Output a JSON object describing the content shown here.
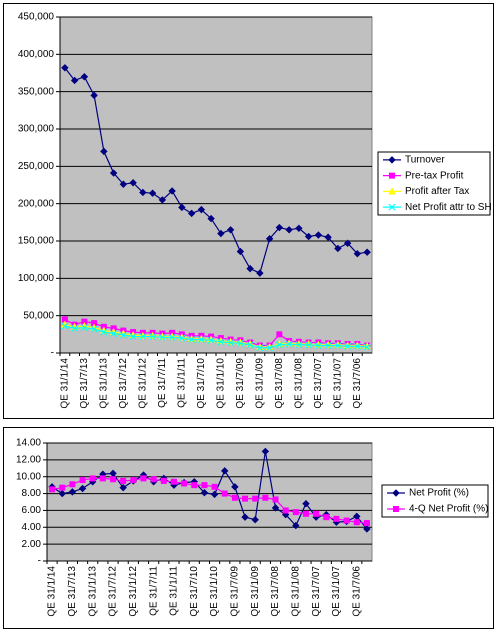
{
  "chart_data": [
    {
      "type": "line",
      "legend": "right",
      "grid": true,
      "categories": [
        "QE 31/1/14",
        null,
        "QE 31/7/13",
        null,
        "QE 31/1/13",
        null,
        "QE 31/7/12",
        null,
        "QE 31/1/12",
        null,
        "QE 31/7/11",
        null,
        "QE 31/1/11",
        null,
        "QE 31/7/10",
        null,
        "QE 31/1/10",
        null,
        "QE 31/7/09",
        null,
        "QE 31/1/09",
        null,
        "QE 31/7/08",
        null,
        "QE 31/1/08",
        null,
        "QE 31/7/07",
        null,
        "QE 31/1/07",
        null,
        "QE 31/7/06",
        null
      ],
      "ylim": [
        0,
        450000
      ],
      "yticks": [
        {
          "value": 0,
          "label": "-"
        },
        {
          "value": 50000,
          "label": "50,000"
        },
        {
          "value": 100000,
          "label": "100,000"
        },
        {
          "value": 150000,
          "label": "150,000"
        },
        {
          "value": 200000,
          "label": "200,000"
        },
        {
          "value": 250000,
          "label": "250,000"
        },
        {
          "value": 300000,
          "label": "300,000"
        },
        {
          "value": 350000,
          "label": "350,000"
        },
        {
          "value": 400000,
          "label": "400,000"
        },
        {
          "value": 450000,
          "label": "450,000"
        }
      ],
      "series": [
        {
          "name": "Turnover",
          "color": "#000080",
          "marker": "diamond",
          "values": [
            382000,
            365000,
            370000,
            345000,
            270000,
            241000,
            226000,
            228000,
            215000,
            214000,
            205000,
            217000,
            195000,
            187000,
            192000,
            180000,
            160000,
            165000,
            136000,
            113000,
            107000,
            153000,
            168000,
            165000,
            167000,
            156000,
            158000,
            155000,
            140000,
            147000,
            133000,
            135000
          ]
        },
        {
          "name": "Pre-tax Profit",
          "color": "#ff00ff",
          "marker": "square",
          "values": [
            45000,
            38000,
            42000,
            40000,
            35000,
            33000,
            30000,
            28000,
            27000,
            27000,
            26000,
            27000,
            25000,
            23000,
            23000,
            22000,
            20000,
            18000,
            17000,
            14000,
            10000,
            10000,
            25000,
            16000,
            15000,
            14000,
            14000,
            13000,
            13000,
            12000,
            12000,
            10000
          ]
        },
        {
          "name": "Profit after Tax",
          "color": "#ffff00",
          "marker": "triangle",
          "values": [
            38000,
            35000,
            36000,
            34000,
            30000,
            28000,
            26000,
            24000,
            23000,
            23000,
            22000,
            22000,
            21000,
            19000,
            19000,
            18000,
            16000,
            15000,
            14000,
            12000,
            8000,
            8000,
            12000,
            13000,
            12000,
            12000,
            11000,
            11000,
            11000,
            10000,
            10000,
            9000
          ]
        },
        {
          "name": "Net Profit attr to SH",
          "color": "#00ffff",
          "marker": "x",
          "values": [
            36000,
            33000,
            34000,
            32000,
            28000,
            26000,
            24000,
            22000,
            22000,
            22000,
            21000,
            21000,
            20000,
            18000,
            18000,
            17000,
            15000,
            14000,
            13000,
            11000,
            7000,
            7000,
            11000,
            12000,
            11000,
            11000,
            10000,
            10000,
            10000,
            9000,
            9000,
            8000
          ]
        }
      ]
    },
    {
      "type": "line",
      "legend": "right",
      "grid": true,
      "categories": [
        "QE 31/1/14",
        null,
        "QE 31/7/13",
        null,
        "QE 31/1/13",
        null,
        "QE 31/7/12",
        null,
        "QE 31/1/12",
        null,
        "QE 31/7/11",
        null,
        "QE 31/1/11",
        null,
        "QE 31/7/10",
        null,
        "QE 31/1/10",
        null,
        "QE 31/7/09",
        null,
        "QE 31/1/09",
        null,
        "QE 31/7/08",
        null,
        "QE 31/1/08",
        null,
        "QE 31/7/07",
        null,
        "QE 31/1/07",
        null,
        "QE 31/7/06",
        null
      ],
      "ylim": [
        0,
        14
      ],
      "yticks": [
        {
          "value": 0,
          "label": "-"
        },
        {
          "value": 2,
          "label": "2.00"
        },
        {
          "value": 4,
          "label": "4.00"
        },
        {
          "value": 6,
          "label": "6.00"
        },
        {
          "value": 8,
          "label": "8.00"
        },
        {
          "value": 10,
          "label": "10.00"
        },
        {
          "value": 12,
          "label": "12.00"
        },
        {
          "value": 14,
          "label": "14.00"
        }
      ],
      "series": [
        {
          "name": "Net Profit (%)",
          "color": "#000080",
          "marker": "diamond",
          "values": [
            8.8,
            8.0,
            8.2,
            8.6,
            9.4,
            10.3,
            10.4,
            8.7,
            9.5,
            10.2,
            9.4,
            9.8,
            9.0,
            9.3,
            9.4,
            8.1,
            7.9,
            10.7,
            8.8,
            5.2,
            4.9,
            13.0,
            6.3,
            5.5,
            4.2,
            6.8,
            5.2,
            5.5,
            4.6,
            4.7,
            5.3,
            3.8
          ]
        },
        {
          "name": "4-Q Net Profit (%)",
          "color": "#ff00ff",
          "marker": "square",
          "values": [
            8.5,
            8.7,
            9.1,
            9.6,
            9.8,
            9.8,
            9.7,
            9.5,
            9.6,
            9.8,
            9.7,
            9.5,
            9.4,
            9.2,
            9.0,
            9.0,
            8.8,
            8.0,
            7.5,
            7.4,
            7.4,
            7.5,
            7.3,
            6.0,
            5.8,
            5.6,
            5.6,
            5.2,
            5.0,
            4.8,
            4.6,
            4.5
          ]
        }
      ]
    }
  ]
}
